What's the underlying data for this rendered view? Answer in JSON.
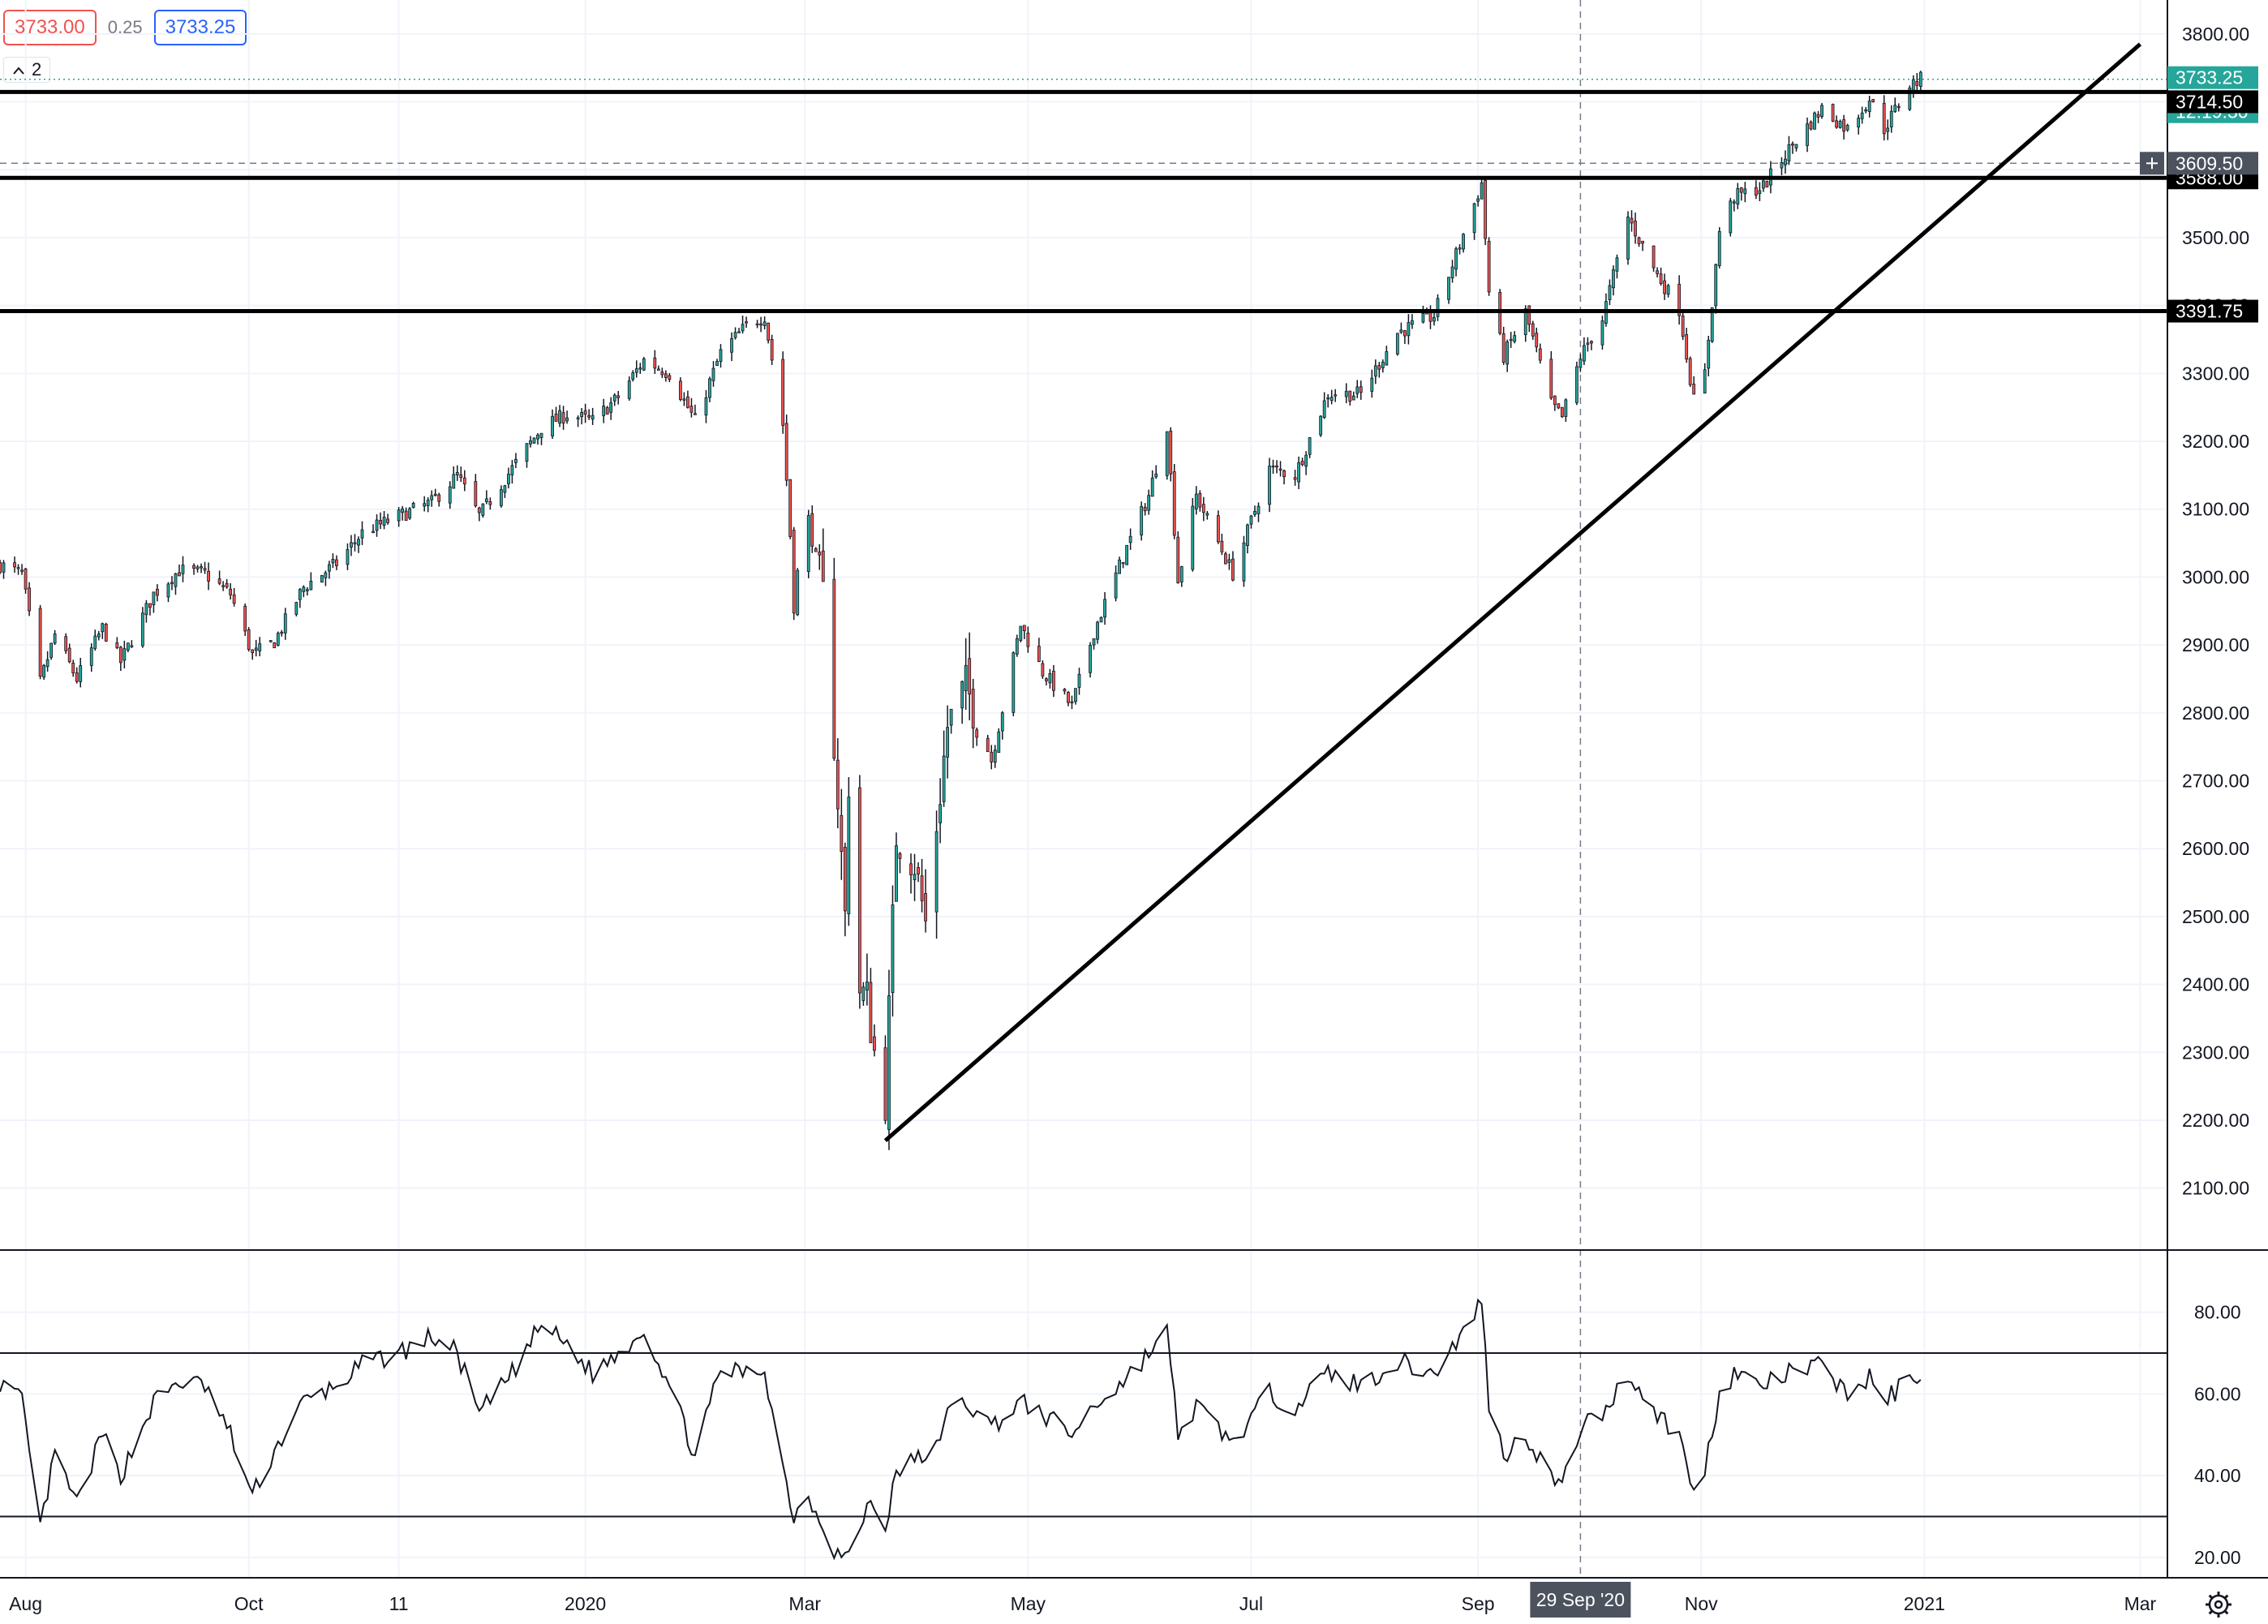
{
  "toolbar": {
    "bid_value": "3733.00",
    "spread_value": "0.25",
    "ask_value": "3733.25",
    "collapse_count": "2",
    "collapse_icon": "chevron-up-icon"
  },
  "axis": {
    "settings_icon": "gear-icon",
    "crosshair_date": "29 Sep '20",
    "x_tick_labels": [
      "Aug",
      "Oct",
      "11",
      "2020",
      "Mar",
      "May",
      "Jul",
      "Sep",
      "Nov",
      "2021",
      "Mar"
    ]
  },
  "price_tags": {
    "last_price": "3733.25",
    "countdown": "12:19:30",
    "level_1": "3714.50",
    "crosshair_price": "3609.50",
    "level_2": "3588.00",
    "level_3": "3391.75",
    "add_icon": "plus-icon"
  },
  "colors": {
    "up": "#26a69a",
    "down": "#ef5350",
    "last_price_tag": "#26a69a",
    "level_tag": "#000000",
    "crosshair_tag": "#4c525e",
    "grid": "#f0f3fa",
    "bid": "#ef5350",
    "ask": "#2962ff"
  },
  "chart_data": [
    {
      "type": "candlestick",
      "x_range": [
        "2019-07-25",
        "2021-03-08"
      ],
      "ylim": [
        2010,
        3850
      ],
      "y_tick_labels": [
        "2100.00",
        "2200.00",
        "2300.00",
        "2400.00",
        "2500.00",
        "2600.00",
        "2700.00",
        "2800.00",
        "2900.00",
        "3000.00",
        "3100.00",
        "3200.00",
        "3300.00",
        "3400.00",
        "3500.00",
        "3600.00",
        "3700.00",
        "3800.00"
      ],
      "x_ticks": [
        {
          "date": "2019-08-01",
          "label": "Aug"
        },
        {
          "date": "2019-10-01",
          "label": "Oct"
        },
        {
          "date": "2019-11-11",
          "label": "11"
        },
        {
          "date": "2020-01-01",
          "label": "2020"
        },
        {
          "date": "2020-03-01",
          "label": "Mar"
        },
        {
          "date": "2020-05-01",
          "label": "May"
        },
        {
          "date": "2020-07-01",
          "label": "Jul"
        },
        {
          "date": "2020-09-01",
          "label": "Sep"
        },
        {
          "date": "2020-11-01",
          "label": "Nov"
        },
        {
          "date": "2021-01-01",
          "label": "2021"
        },
        {
          "date": "2021-03-01",
          "label": "Mar"
        }
      ],
      "close_path": [
        [
          "2019-07-25",
          3018
        ],
        [
          "2019-07-31",
          3005
        ],
        [
          "2019-08-05",
          2845
        ],
        [
          "2019-08-09",
          2915
        ],
        [
          "2019-08-15",
          2850
        ],
        [
          "2019-08-22",
          2925
        ],
        [
          "2019-08-27",
          2875
        ],
        [
          "2019-09-05",
          2975
        ],
        [
          "2019-09-12",
          3010
        ],
        [
          "2019-09-19",
          3005
        ],
        [
          "2019-09-26",
          2975
        ],
        [
          "2019-10-02",
          2885
        ],
        [
          "2019-10-08",
          2905
        ],
        [
          "2019-10-16",
          2985
        ],
        [
          "2019-10-25",
          3020
        ],
        [
          "2019-11-01",
          3065
        ],
        [
          "2019-11-11",
          3090
        ],
        [
          "2019-11-20",
          3110
        ],
        [
          "2019-11-27",
          3150
        ],
        [
          "2019-12-03",
          3090
        ],
        [
          "2019-12-12",
          3160
        ],
        [
          "2019-12-20",
          3220
        ],
        [
          "2019-12-27",
          3240
        ],
        [
          "2020-01-03",
          3230
        ],
        [
          "2020-01-10",
          3265
        ],
        [
          "2020-01-17",
          3320
        ],
        [
          "2020-01-24",
          3300
        ],
        [
          "2020-01-31",
          3230
        ],
        [
          "2020-02-07",
          3330
        ],
        [
          "2020-02-14",
          3370
        ],
        [
          "2020-02-19",
          3385
        ],
        [
          "2020-02-24",
          3225
        ],
        [
          "2020-02-27",
          2980
        ],
        [
          "2020-03-02",
          3085
        ],
        [
          "2020-03-06",
          2970
        ],
        [
          "2020-03-09",
          2760
        ],
        [
          "2020-03-12",
          2500
        ],
        [
          "2020-03-13",
          2700
        ],
        [
          "2020-03-16",
          2390
        ],
        [
          "2020-03-18",
          2380
        ],
        [
          "2020-03-20",
          2300
        ],
        [
          "2020-03-23",
          2230
        ],
        [
          "2020-03-26",
          2620
        ],
        [
          "2020-03-31",
          2580
        ],
        [
          "2020-04-03",
          2490
        ],
        [
          "2020-04-09",
          2780
        ],
        [
          "2020-04-14",
          2840
        ],
        [
          "2020-04-21",
          2730
        ],
        [
          "2020-04-29",
          2930
        ],
        [
          "2020-05-05",
          2860
        ],
        [
          "2020-05-13",
          2810
        ],
        [
          "2020-05-19",
          2920
        ],
        [
          "2020-05-27",
          3030
        ],
        [
          "2020-06-03",
          3120
        ],
        [
          "2020-06-08",
          3225
        ],
        [
          "2020-06-11",
          2995
        ],
        [
          "2020-06-16",
          3120
        ],
        [
          "2020-06-26",
          3005
        ],
        [
          "2020-07-06",
          3160
        ],
        [
          "2020-07-13",
          3150
        ],
        [
          "2020-07-22",
          3270
        ],
        [
          "2020-07-31",
          3270
        ],
        [
          "2020-08-10",
          3360
        ],
        [
          "2020-08-20",
          3385
        ],
        [
          "2020-08-28",
          3505
        ],
        [
          "2020-09-02",
          3580
        ],
        [
          "2020-09-04",
          3420
        ],
        [
          "2020-09-08",
          3325
        ],
        [
          "2020-09-14",
          3390
        ],
        [
          "2020-09-21",
          3255
        ],
        [
          "2020-09-24",
          3235
        ],
        [
          "2020-09-29",
          3325
        ],
        [
          "2020-10-05",
          3380
        ],
        [
          "2020-10-12",
          3530
        ],
        [
          "2020-10-20",
          3445
        ],
        [
          "2020-10-26",
          3395
        ],
        [
          "2020-10-30",
          3260
        ],
        [
          "2020-11-02",
          3300
        ],
        [
          "2020-11-06",
          3510
        ],
        [
          "2020-11-10",
          3560
        ],
        [
          "2020-11-18",
          3575
        ],
        [
          "2020-11-25",
          3630
        ],
        [
          "2020-12-04",
          3690
        ],
        [
          "2020-12-11",
          3660
        ],
        [
          "2020-12-17",
          3705
        ],
        [
          "2020-12-21",
          3660
        ],
        [
          "2020-12-28",
          3725
        ],
        [
          "2020-12-31",
          3733
        ]
      ]
    },
    {
      "type": "line",
      "series": [
        {
          "values_path": [
            [
              "2019-07-25",
              63
            ],
            [
              "2019-07-31",
              58
            ],
            [
              "2019-08-05",
              27
            ],
            [
              "2019-08-09",
              45
            ],
            [
              "2019-08-15",
              33
            ],
            [
              "2019-08-22",
              50
            ],
            [
              "2019-08-27",
              40
            ],
            [
              "2019-09-05",
              58
            ],
            [
              "2019-09-12",
              63
            ],
            [
              "2019-09-19",
              62
            ],
            [
              "2019-09-26",
              50
            ],
            [
              "2019-10-02",
              35
            ],
            [
              "2019-10-08",
              46
            ],
            [
              "2019-10-16",
              58
            ],
            [
              "2019-10-25",
              62
            ],
            [
              "2019-11-01",
              67
            ],
            [
              "2019-11-11",
              70
            ],
            [
              "2019-11-20",
              74
            ],
            [
              "2019-11-27",
              70
            ],
            [
              "2019-12-03",
              55
            ],
            [
              "2019-12-12",
              65
            ],
            [
              "2019-12-20",
              77
            ],
            [
              "2019-12-27",
              72
            ],
            [
              "2020-01-03",
              65
            ],
            [
              "2020-01-10",
              70
            ],
            [
              "2020-01-17",
              76
            ],
            [
              "2020-01-24",
              62
            ],
            [
              "2020-01-31",
              45
            ],
            [
              "2020-02-07",
              66
            ],
            [
              "2020-02-14",
              65
            ],
            [
              "2020-02-19",
              66
            ],
            [
              "2020-02-24",
              42
            ],
            [
              "2020-02-27",
              30
            ],
            [
              "2020-03-02",
              35
            ],
            [
              "2020-03-06",
              28
            ],
            [
              "2020-03-09",
              22
            ],
            [
              "2020-03-12",
              20
            ],
            [
              "2020-03-16",
              25
            ],
            [
              "2020-03-18",
              34
            ],
            [
              "2020-03-23",
              28
            ],
            [
              "2020-03-26",
              40
            ],
            [
              "2020-03-31",
              45
            ],
            [
              "2020-04-03",
              42
            ],
            [
              "2020-04-09",
              55
            ],
            [
              "2020-04-14",
              58
            ],
            [
              "2020-04-21",
              52
            ],
            [
              "2020-04-29",
              58
            ],
            [
              "2020-05-05",
              55
            ],
            [
              "2020-05-13",
              50
            ],
            [
              "2020-05-19",
              57
            ],
            [
              "2020-05-27",
              63
            ],
            [
              "2020-06-03",
              70
            ],
            [
              "2020-06-08",
              75
            ],
            [
              "2020-06-11",
              50
            ],
            [
              "2020-06-16",
              57
            ],
            [
              "2020-06-26",
              48
            ],
            [
              "2020-07-06",
              60
            ],
            [
              "2020-07-13",
              57
            ],
            [
              "2020-07-22",
              65
            ],
            [
              "2020-07-31",
              62
            ],
            [
              "2020-08-10",
              68
            ],
            [
              "2020-08-20",
              65
            ],
            [
              "2020-08-28",
              75
            ],
            [
              "2020-09-02",
              83
            ],
            [
              "2020-09-04",
              58
            ],
            [
              "2020-09-08",
              45
            ],
            [
              "2020-09-14",
              50
            ],
            [
              "2020-09-21",
              40
            ],
            [
              "2020-09-24",
              37
            ],
            [
              "2020-09-29",
              52
            ],
            [
              "2020-10-05",
              55
            ],
            [
              "2020-10-12",
              65
            ],
            [
              "2020-10-20",
              55
            ],
            [
              "2020-10-26",
              50
            ],
            [
              "2020-10-30",
              35
            ],
            [
              "2020-11-02",
              42
            ],
            [
              "2020-11-06",
              60
            ],
            [
              "2020-11-10",
              65
            ],
            [
              "2020-11-18",
              62
            ],
            [
              "2020-11-25",
              65
            ],
            [
              "2020-12-04",
              67
            ],
            [
              "2020-12-11",
              60
            ],
            [
              "2020-12-17",
              64
            ],
            [
              "2020-12-21",
              58
            ],
            [
              "2020-12-28",
              64
            ],
            [
              "2020-12-31",
              65
            ]
          ]
        }
      ],
      "ylim": [
        15,
        95
      ],
      "y_tick_labels": [
        "20.00",
        "40.00",
        "60.00",
        "80.00"
      ],
      "levels": [
        70,
        30
      ]
    }
  ],
  "drawings": {
    "horizontal_levels": [
      3714.5,
      3588,
      3391.75
    ],
    "trendline": {
      "from": [
        "2020-03-23",
        2170
      ],
      "to": [
        "2021-03-01",
        3785
      ]
    }
  }
}
